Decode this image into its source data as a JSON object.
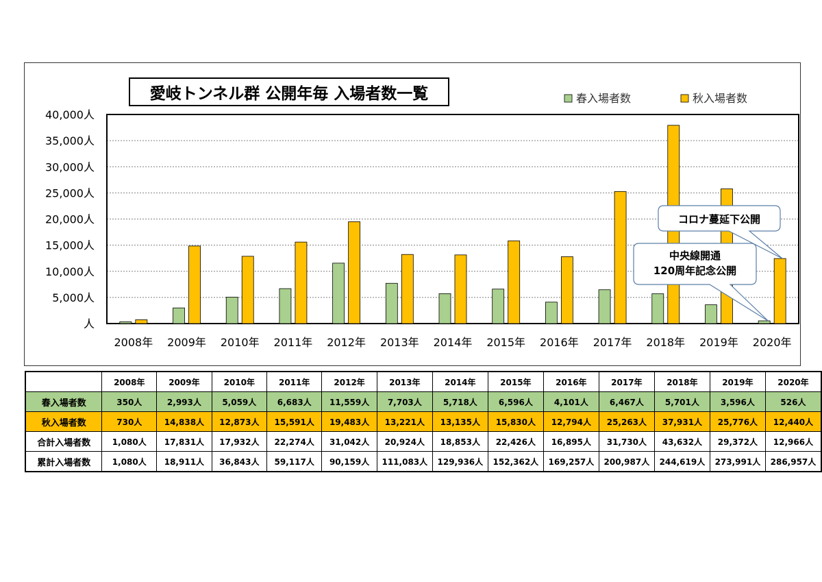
{
  "chart_data": {
    "type": "bar",
    "title": "愛岐トンネル群 公開年毎 入場者数一覧",
    "categories": [
      "2008年",
      "2009年",
      "2010年",
      "2011年",
      "2012年",
      "2013年",
      "2014年",
      "2015年",
      "2016年",
      "2017年",
      "2018年",
      "2019年",
      "2020年"
    ],
    "series": [
      {
        "name": "春入場者数",
        "color": "#a9d08e",
        "values": [
          350,
          2993,
          5059,
          6683,
          11559,
          7703,
          5718,
          6596,
          4101,
          6467,
          5701,
          3596,
          526
        ]
      },
      {
        "name": "秋入場者数",
        "color": "#ffc000",
        "values": [
          730,
          14838,
          12873,
          15591,
          19483,
          13221,
          13135,
          15830,
          12794,
          25263,
          37931,
          25776,
          12440
        ]
      }
    ],
    "ylim": [
      0,
      40000
    ],
    "y_ticks": [
      "人",
      "5,000人",
      "10,000人",
      "15,000人",
      "20,000人",
      "25,000人",
      "30,000人",
      "35,000人",
      "40,000人"
    ],
    "grid": true,
    "legend_position": "top-right",
    "annotations": [
      {
        "text": "コロナ蔓延下公開",
        "target": "2020年"
      },
      {
        "text": "中央線開通\n120周年記念公開",
        "target": "2020年"
      }
    ]
  },
  "table": {
    "header": [
      "",
      "2008年",
      "2009年",
      "2010年",
      "2011年",
      "2012年",
      "2013年",
      "2014年",
      "2015年",
      "2016年",
      "2017年",
      "2018年",
      "2019年",
      "2020年"
    ],
    "rows": [
      {
        "label": "春入場者数",
        "cells": [
          "350人",
          "2,993人",
          "5,059人",
          "6,683人",
          "11,559人",
          "7,703人",
          "5,718人",
          "6,596人",
          "4,101人",
          "6,467人",
          "5,701人",
          "3,596人",
          "526人"
        ]
      },
      {
        "label": "秋入場者数",
        "cells": [
          "730人",
          "14,838人",
          "12,873人",
          "15,591人",
          "19,483人",
          "13,221人",
          "13,135人",
          "15,830人",
          "12,794人",
          "25,263人",
          "37,931人",
          "25,776人",
          "12,440人"
        ]
      },
      {
        "label": "合計入場者数",
        "cells": [
          "1,080人",
          "17,831人",
          "17,932人",
          "22,274人",
          "31,042人",
          "20,924人",
          "18,853人",
          "22,426人",
          "16,895人",
          "31,730人",
          "43,632人",
          "29,372人",
          "12,966人"
        ]
      },
      {
        "label": "累計入場者数",
        "cells": [
          "1,080人",
          "18,911人",
          "36,843人",
          "59,117人",
          "90,159人",
          "111,083人",
          "129,936人",
          "152,362人",
          "169,257人",
          "200,987人",
          "244,619人",
          "273,991人",
          "286,957人"
        ]
      }
    ]
  }
}
